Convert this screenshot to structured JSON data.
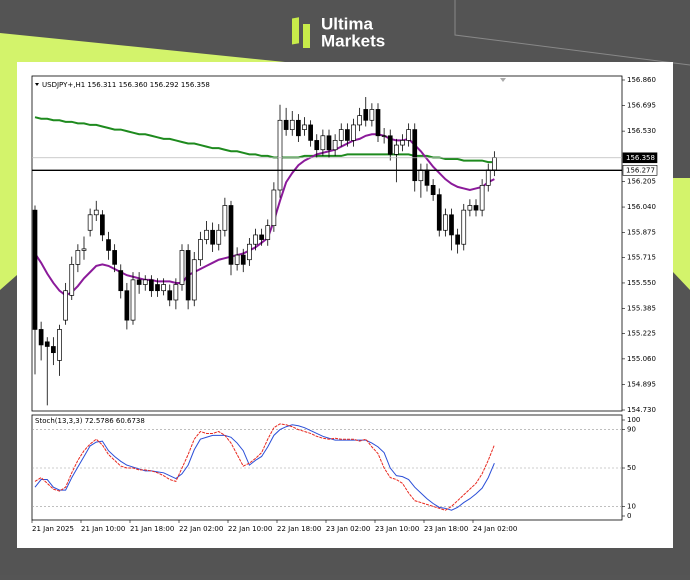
{
  "header": {
    "brand": [
      "Ultima",
      "Markets"
    ]
  },
  "chart_data": [
    {
      "type": "candlestick",
      "title": "USDJPY+,H1 156.311 156.360 156.292 156.358",
      "categories": [
        "21 Jan 2025",
        null,
        null,
        null,
        null,
        null,
        null,
        null,
        "21 Jan 10:00",
        null,
        null,
        null,
        null,
        null,
        null,
        null,
        "21 Jan 18:00",
        null,
        null,
        null,
        null,
        null,
        null,
        null,
        "22 Jan 02:00",
        null,
        null,
        null,
        null,
        null,
        null,
        null,
        "22 Jan 10:00",
        null,
        null,
        null,
        null,
        null,
        null,
        null,
        "22 Jan 18:00",
        null,
        null,
        null,
        null,
        null,
        null,
        null,
        "23 Jan 02:00",
        null,
        null,
        null,
        null,
        null,
        null,
        null,
        "23 Jan 10:00",
        null,
        null,
        null,
        null,
        null,
        null,
        null,
        "23 Jan 18:00",
        null,
        null,
        null,
        null,
        null,
        null,
        null,
        "24 Jan 02:00",
        null,
        null,
        null
      ],
      "open": [
        156.02,
        155.25,
        155.17,
        155.14,
        155.05,
        155.31,
        155.47,
        155.67,
        155.76,
        155.89,
        155.99,
        155.99,
        155.83,
        155.76,
        155.63,
        155.5,
        155.31,
        155.57,
        155.54,
        155.57,
        155.54,
        155.5,
        155.5,
        155.44,
        155.54,
        155.76,
        155.44,
        155.7,
        155.83,
        155.89,
        155.8,
        155.89,
        156.05,
        155.67,
        155.73,
        155.7,
        155.8,
        155.86,
        155.83,
        155.92,
        156.15,
        156.6,
        156.54,
        156.6,
        156.54,
        156.57,
        156.47,
        156.41,
        156.5,
        156.41,
        156.47,
        156.54,
        156.47,
        156.57,
        156.67,
        156.6,
        156.67,
        156.5,
        156.5,
        156.38,
        156.44,
        156.47,
        156.54,
        156.21,
        156.28,
        156.18,
        156.12,
        155.89,
        155.99,
        155.86,
        155.8,
        156.02,
        156.05,
        156.02,
        156.18,
        156.28
      ],
      "high": [
        156.05,
        155.3,
        155.2,
        155.2,
        155.28,
        155.55,
        155.72,
        155.8,
        155.85,
        156.03,
        156.08,
        156.02,
        155.88,
        155.8,
        155.67,
        155.55,
        155.62,
        155.62,
        155.6,
        155.6,
        155.58,
        155.58,
        155.54,
        155.58,
        155.8,
        155.8,
        155.75,
        155.88,
        155.95,
        155.94,
        155.93,
        156.1,
        156.08,
        155.78,
        155.77,
        155.84,
        155.9,
        155.9,
        155.96,
        156.2,
        156.7,
        156.68,
        156.66,
        156.64,
        156.62,
        156.6,
        156.51,
        156.54,
        156.54,
        156.51,
        156.58,
        156.58,
        156.61,
        156.68,
        156.75,
        156.71,
        156.71,
        156.55,
        156.54,
        156.48,
        156.51,
        156.58,
        156.58,
        156.32,
        156.32,
        156.22,
        156.16,
        156.03,
        156.03,
        155.9,
        156.06,
        156.09,
        156.09,
        156.22,
        156.32,
        156.4
      ],
      "low": [
        154.96,
        155.05,
        154.76,
        155.02,
        154.95,
        155.28,
        155.44,
        155.62,
        155.7,
        155.85,
        155.95,
        155.82,
        155.7,
        155.62,
        155.45,
        155.25,
        155.28,
        155.48,
        155.5,
        155.46,
        155.46,
        155.47,
        155.4,
        155.38,
        155.5,
        155.38,
        155.4,
        155.66,
        155.8,
        155.75,
        155.76,
        155.85,
        155.6,
        155.63,
        155.62,
        155.66,
        155.76,
        155.79,
        155.79,
        155.88,
        156.1,
        156.5,
        156.5,
        156.46,
        156.5,
        156.43,
        156.36,
        156.37,
        156.36,
        156.37,
        156.43,
        156.43,
        156.43,
        156.53,
        156.56,
        156.56,
        156.46,
        156.45,
        156.34,
        156.2,
        156.4,
        156.43,
        156.14,
        156.1,
        156.14,
        156.08,
        155.85,
        155.85,
        155.76,
        155.74,
        155.76,
        155.98,
        155.98,
        155.98,
        156.14,
        156.24
      ],
      "close": [
        155.25,
        155.15,
        155.14,
        155.1,
        155.25,
        155.5,
        155.67,
        155.76,
        155.77,
        155.99,
        156.02,
        155.86,
        155.76,
        155.67,
        155.5,
        155.31,
        155.57,
        155.54,
        155.57,
        155.5,
        155.5,
        155.54,
        155.44,
        155.54,
        155.76,
        155.44,
        155.7,
        155.83,
        155.89,
        155.8,
        155.89,
        156.05,
        155.67,
        155.73,
        155.67,
        155.8,
        155.86,
        155.83,
        155.92,
        156.15,
        156.6,
        156.54,
        156.6,
        156.5,
        156.57,
        156.47,
        156.41,
        156.5,
        156.41,
        156.47,
        156.54,
        156.47,
        156.57,
        156.63,
        156.6,
        156.67,
        156.5,
        156.5,
        156.38,
        156.44,
        156.47,
        156.54,
        156.21,
        156.28,
        156.18,
        156.12,
        155.89,
        155.99,
        155.86,
        155.8,
        156.02,
        156.05,
        156.02,
        156.18,
        156.28,
        156.36
      ],
      "moving_averages": [
        {
          "color": "#1e8a1e",
          "values": [
            156.62,
            156.61,
            156.61,
            156.6,
            156.6,
            156.59,
            156.59,
            156.58,
            156.58,
            156.57,
            156.57,
            156.56,
            156.55,
            156.54,
            156.54,
            156.53,
            156.52,
            156.51,
            156.51,
            156.5,
            156.49,
            156.48,
            156.48,
            156.47,
            156.46,
            156.45,
            156.45,
            156.44,
            156.43,
            156.42,
            156.42,
            156.41,
            156.4,
            156.4,
            156.39,
            156.38,
            156.38,
            156.37,
            156.37,
            156.36,
            156.36,
            156.36,
            156.36,
            156.36,
            156.37,
            156.37,
            156.37,
            156.37,
            156.37,
            156.37,
            156.37,
            156.38,
            156.38,
            156.38,
            156.38,
            156.38,
            156.38,
            156.38,
            156.38,
            156.38,
            156.38,
            156.38,
            156.37,
            156.37,
            156.37,
            156.36,
            156.36,
            156.35,
            156.35,
            156.35,
            156.34,
            156.34,
            156.34,
            156.34,
            156.33,
            156.33
          ]
        },
        {
          "color": "#8b1a9a",
          "values": [
            155.74,
            155.68,
            155.61,
            155.55,
            155.5,
            155.47,
            155.49,
            155.53,
            155.58,
            155.62,
            155.66,
            155.67,
            155.66,
            155.64,
            155.62,
            155.6,
            155.59,
            155.58,
            155.57,
            155.57,
            155.56,
            155.56,
            155.56,
            155.55,
            155.55,
            155.6,
            155.62,
            155.64,
            155.66,
            155.68,
            155.7,
            155.71,
            155.72,
            155.73,
            155.74,
            155.76,
            155.78,
            155.81,
            155.84,
            155.95,
            156.08,
            156.2,
            156.26,
            156.31,
            156.34,
            156.36,
            156.38,
            156.39,
            156.4,
            156.41,
            156.43,
            156.45,
            156.47,
            156.48,
            156.5,
            156.51,
            156.51,
            156.5,
            156.48,
            156.47,
            156.47,
            156.48,
            156.44,
            156.4,
            156.35,
            156.3,
            156.26,
            156.22,
            156.19,
            156.17,
            156.16,
            156.15,
            156.16,
            156.17,
            156.2,
            156.22
          ]
        }
      ],
      "price_lines": [
        {
          "value": 156.358,
          "label": "156.358",
          "color": "#000000"
        },
        {
          "value": 156.277,
          "label": "156.277",
          "color": "#ffffff"
        }
      ],
      "ylim": [
        154.73,
        156.86
      ],
      "yticks": [
        {
          "value": 156.86,
          "label": "156.860"
        },
        156.695,
        {
          "value": 156.53,
          "label": "156.530"
        },
        {
          "value": 156.205,
          "label": "156.205"
        },
        {
          "value": 156.04,
          "label": "156.040"
        },
        155.875,
        155.715,
        {
          "value": 155.55,
          "label": "155.550"
        },
        155.385,
        155.225,
        {
          "value": 155.06,
          "label": "155.060"
        },
        154.895,
        {
          "value": 154.73,
          "label": "154.730"
        }
      ]
    },
    {
      "type": "line",
      "title": "Stoch(13,3,3) 72.5786 60.6738",
      "series": [
        {
          "color": "#2b4fd8",
          "values": [
            30,
            38,
            38,
            30,
            27,
            27,
            40,
            51,
            62,
            73,
            77,
            78,
            68,
            62,
            57,
            53,
            51,
            49,
            47,
            47,
            46,
            45,
            42,
            39,
            44,
            53,
            69,
            80,
            82,
            84,
            84,
            84,
            82,
            76,
            68,
            53,
            58,
            62,
            72,
            84,
            90,
            93,
            95,
            94,
            92,
            89,
            86,
            83,
            81,
            79,
            79,
            79,
            79,
            79,
            79,
            76,
            72,
            66,
            50,
            42,
            41,
            38,
            30,
            24,
            18,
            13,
            9,
            8,
            6,
            9,
            14,
            18,
            23,
            29,
            40,
            55
          ]
        },
        {
          "color": "#e8281e",
          "values": [
            36,
            40,
            34,
            28,
            26,
            30,
            45,
            58,
            68,
            75,
            80,
            74,
            64,
            58,
            52,
            50,
            50,
            48,
            48,
            47,
            45,
            42,
            38,
            36,
            50,
            64,
            80,
            88,
            86,
            86,
            88,
            84,
            76,
            64,
            52,
            55,
            60,
            66,
            80,
            92,
            96,
            95,
            93,
            90,
            88,
            86,
            83,
            81,
            80,
            81,
            80,
            80,
            80,
            78,
            80,
            72,
            65,
            50,
            40,
            38,
            34,
            24,
            16,
            14,
            12,
            10,
            8,
            6,
            10,
            16,
            22,
            28,
            34,
            44,
            58,
            74
          ]
        }
      ],
      "ylim": [
        0,
        100
      ],
      "yticks": [
        100,
        90,
        50,
        10,
        0
      ],
      "grid": true
    }
  ]
}
